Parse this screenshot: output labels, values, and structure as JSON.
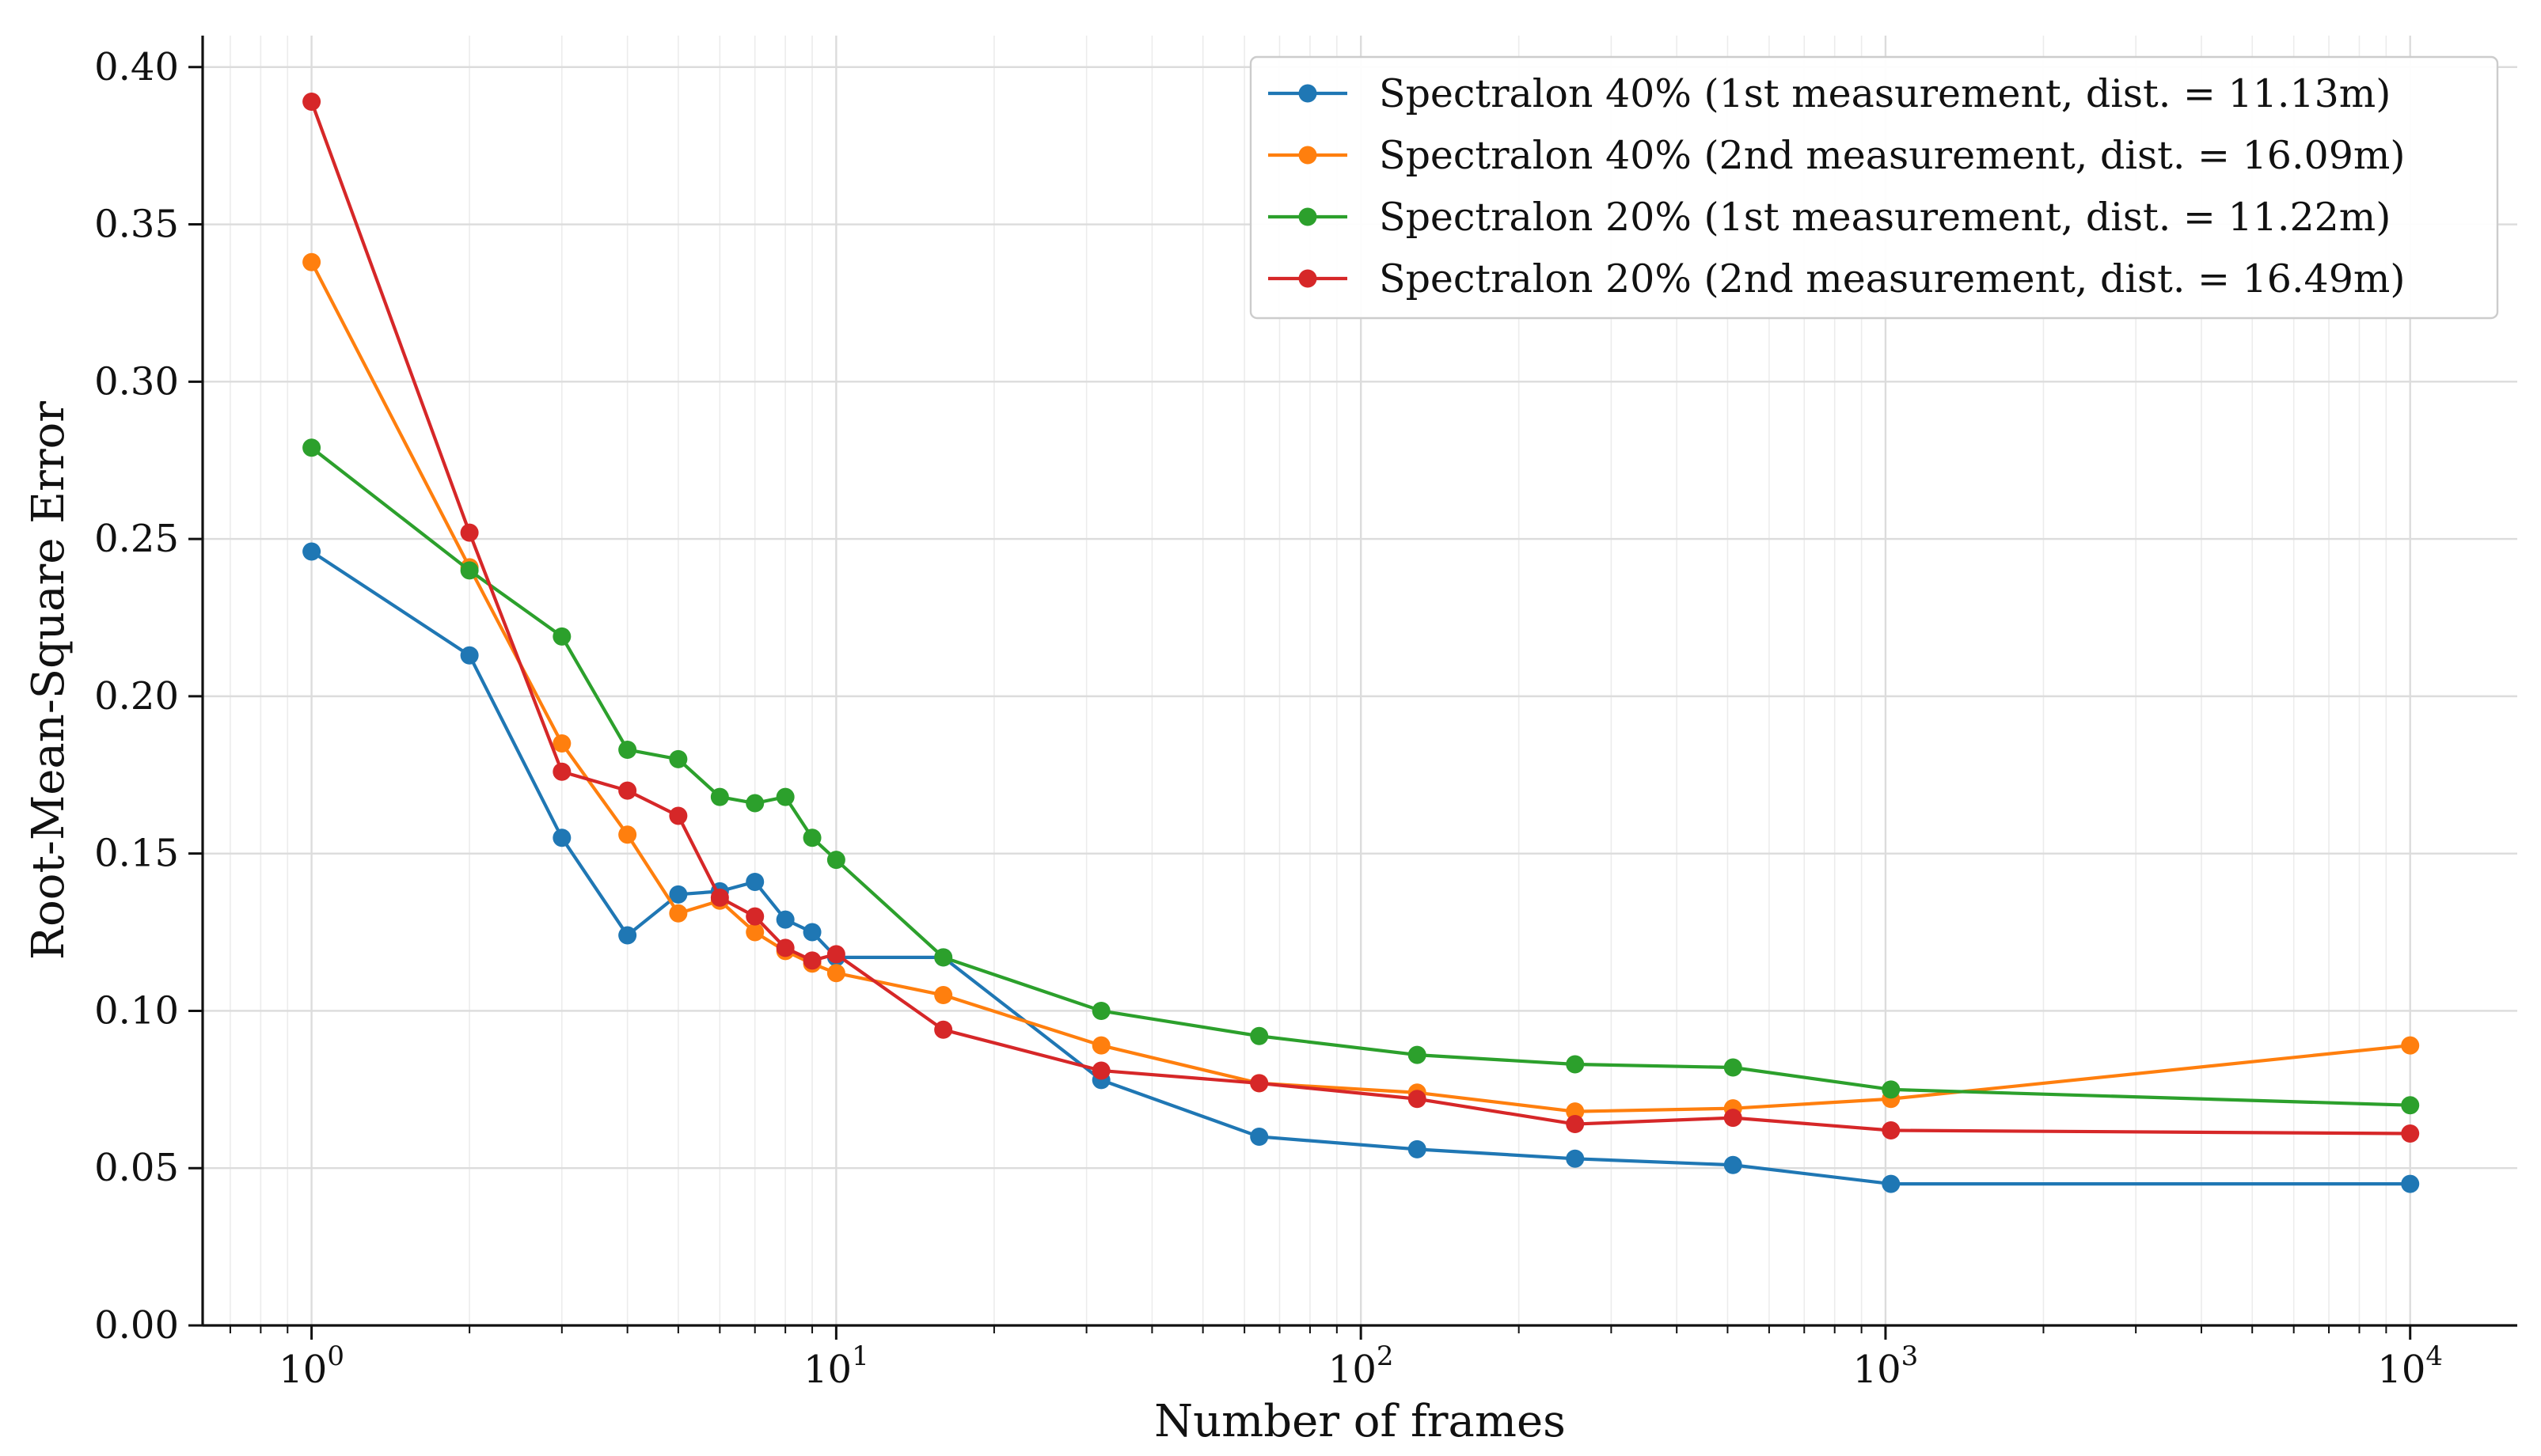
{
  "chart_data": {
    "type": "line",
    "title": "",
    "xlabel": "Number of frames",
    "ylabel": "Root-Mean-Square Error",
    "xscale": "log",
    "xlim": [
      0.62,
      16000
    ],
    "ylim": [
      0.0,
      0.41
    ],
    "x_major_ticks": [
      1,
      10,
      100,
      1000,
      10000
    ],
    "x_tick_labels": [
      {
        "base": "10",
        "exp": "0"
      },
      {
        "base": "10",
        "exp": "1"
      },
      {
        "base": "10",
        "exp": "2"
      },
      {
        "base": "10",
        "exp": "3"
      },
      {
        "base": "10",
        "exp": "4"
      }
    ],
    "y_ticks": [
      0.0,
      0.05,
      0.1,
      0.15,
      0.2,
      0.25,
      0.3,
      0.35,
      0.4
    ],
    "y_tick_labels": [
      "0.00",
      "0.05",
      "0.10",
      "0.15",
      "0.20",
      "0.25",
      "0.30",
      "0.35",
      "0.40"
    ],
    "grid": true,
    "legend_position": "top-right",
    "series": [
      {
        "name": "Spectralon 40% (1st measurement,  dist. = 11.13m)",
        "color": "#1f77b4",
        "x": [
          1,
          2,
          3,
          4,
          5,
          6,
          7,
          8,
          9,
          10,
          16,
          32,
          64,
          128,
          256,
          512,
          1024,
          10000
        ],
        "y": [
          0.246,
          0.213,
          0.155,
          0.124,
          0.137,
          0.138,
          0.141,
          0.129,
          0.125,
          0.117,
          0.117,
          0.078,
          0.06,
          0.056,
          0.053,
          0.051,
          0.045,
          0.045
        ]
      },
      {
        "name": "Spectralon 40% (2nd measurement, dist. = 16.09m)",
        "color": "#ff7f0e",
        "x": [
          1,
          2,
          3,
          4,
          5,
          6,
          7,
          8,
          9,
          10,
          16,
          32,
          64,
          128,
          256,
          512,
          1024,
          10000
        ],
        "y": [
          0.338,
          0.241,
          0.185,
          0.156,
          0.131,
          0.135,
          0.125,
          0.119,
          0.115,
          0.112,
          0.105,
          0.089,
          0.077,
          0.074,
          0.068,
          0.069,
          0.072,
          0.089
        ]
      },
      {
        "name": "Spectralon 20% (1st measurement,  dist. = 11.22m)",
        "color": "#2ca02c",
        "x": [
          1,
          2,
          3,
          4,
          5,
          6,
          7,
          8,
          9,
          10,
          16,
          32,
          64,
          128,
          256,
          512,
          1024,
          10000
        ],
        "y": [
          0.279,
          0.24,
          0.219,
          0.183,
          0.18,
          0.168,
          0.166,
          0.168,
          0.155,
          0.148,
          0.117,
          0.1,
          0.092,
          0.086,
          0.083,
          0.082,
          0.075,
          0.07
        ]
      },
      {
        "name": "Spectralon 20% (2nd measurement, dist. = 16.49m)",
        "color": "#d62728",
        "x": [
          1,
          2,
          3,
          4,
          5,
          6,
          7,
          8,
          9,
          10,
          16,
          32,
          64,
          128,
          256,
          512,
          1024,
          10000
        ],
        "y": [
          0.389,
          0.252,
          0.176,
          0.17,
          0.162,
          0.136,
          0.13,
          0.12,
          0.116,
          0.118,
          0.094,
          0.081,
          0.077,
          0.072,
          0.064,
          0.066,
          0.062,
          0.061
        ]
      }
    ]
  }
}
